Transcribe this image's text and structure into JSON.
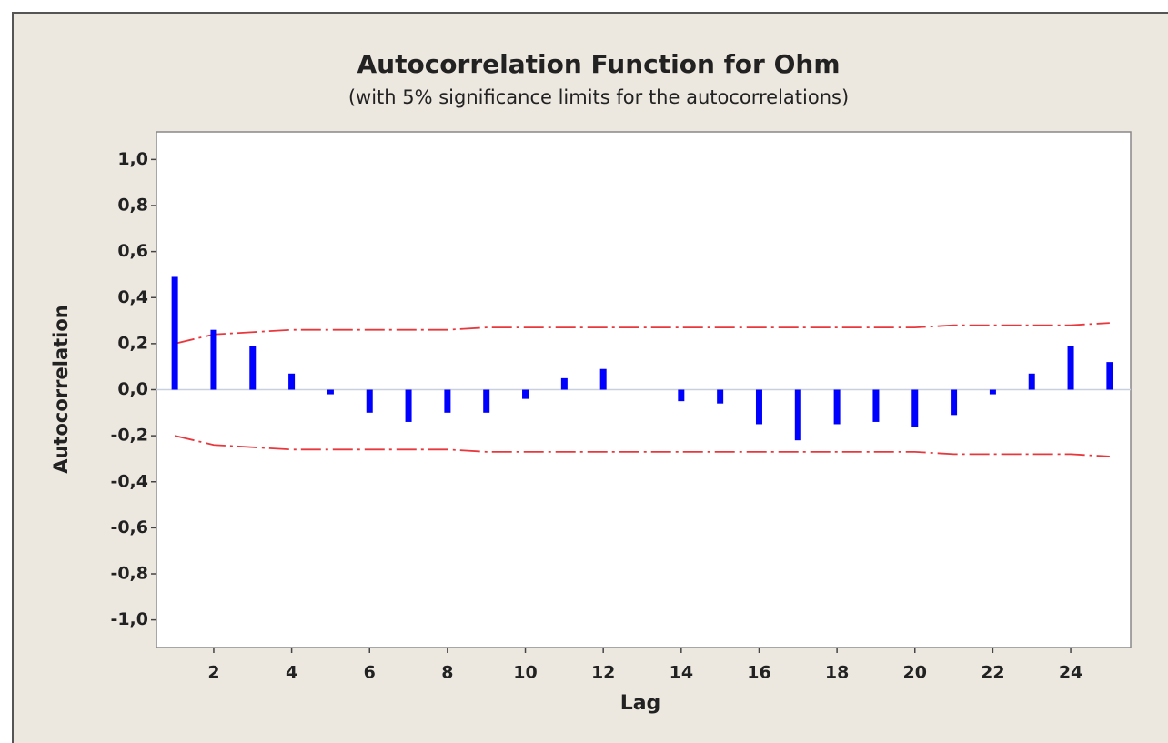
{
  "chart_data": {
    "type": "bar",
    "title": "Autocorrelation Function for Ohm",
    "subtitle": "(with 5% significance limits for the autocorrelations)",
    "xlabel": "Lag",
    "ylabel": "Autocorrelation",
    "x": [
      1,
      2,
      3,
      4,
      5,
      6,
      7,
      8,
      9,
      10,
      11,
      12,
      13,
      14,
      15,
      16,
      17,
      18,
      19,
      20,
      21,
      22,
      23,
      24,
      25
    ],
    "values": [
      0.49,
      0.26,
      0.19,
      0.07,
      -0.02,
      -0.1,
      -0.14,
      -0.1,
      -0.1,
      -0.04,
      0.05,
      0.09,
      0.0,
      -0.05,
      -0.06,
      -0.15,
      -0.22,
      -0.15,
      -0.14,
      -0.16,
      -0.11,
      -0.02,
      0.07,
      0.19,
      0.12
    ],
    "color": "#0000ff",
    "upper_limit": [
      0.2,
      0.24,
      0.25,
      0.26,
      0.26,
      0.26,
      0.26,
      0.26,
      0.27,
      0.27,
      0.27,
      0.27,
      0.27,
      0.27,
      0.27,
      0.27,
      0.27,
      0.27,
      0.27,
      0.27,
      0.28,
      0.28,
      0.28,
      0.28,
      0.29
    ],
    "lower_limit": [
      -0.2,
      -0.24,
      -0.25,
      -0.26,
      -0.26,
      -0.26,
      -0.26,
      -0.26,
      -0.27,
      -0.27,
      -0.27,
      -0.27,
      -0.27,
      -0.27,
      -0.27,
      -0.27,
      -0.27,
      -0.27,
      -0.27,
      -0.27,
      -0.28,
      -0.28,
      -0.28,
      -0.28,
      -0.29
    ],
    "limit_color": "#e8383d",
    "xlim": [
      0.53,
      25.54
    ],
    "ylim": [
      -1.12,
      1.12
    ],
    "xticks": [
      2,
      4,
      6,
      8,
      10,
      12,
      14,
      16,
      18,
      20,
      22,
      24
    ],
    "yticks": [
      {
        "value": 1.0,
        "label": "1,0"
      },
      {
        "value": 0.8,
        "label": "0,8"
      },
      {
        "value": 0.6,
        "label": "0,6"
      },
      {
        "value": 0.4,
        "label": "0,4"
      },
      {
        "value": 0.2,
        "label": "0,2"
      },
      {
        "value": 0.0,
        "label": "0,0"
      },
      {
        "value": -0.2,
        "label": "-0,2"
      },
      {
        "value": -0.4,
        "label": "-0,4"
      },
      {
        "value": -0.6,
        "label": "-0,6"
      },
      {
        "value": -0.8,
        "label": "-0,8"
      },
      {
        "value": -1.0,
        "label": "-1,0"
      }
    ],
    "zero_line": true
  }
}
